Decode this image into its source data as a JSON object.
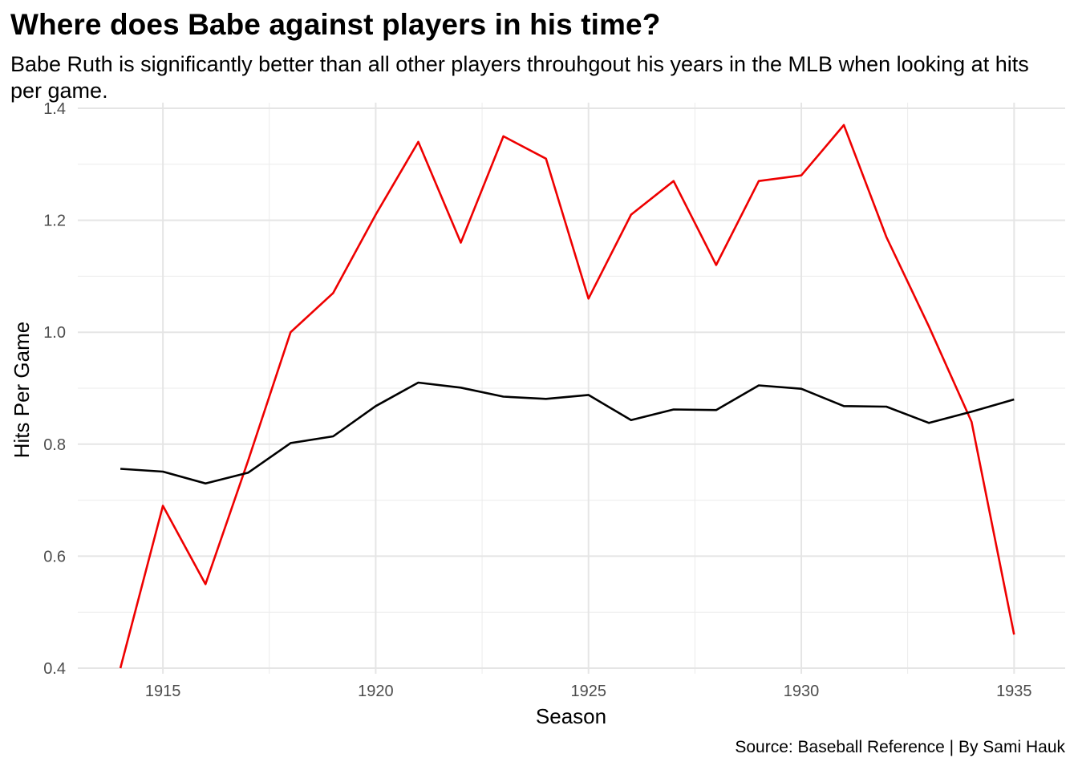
{
  "chart_data": {
    "type": "line",
    "title": "Where does Babe against players in his time?",
    "subtitle": "Babe Ruth is significantly better than all other players throuhgout his years in the MLB when looking at hits per game.",
    "caption": "Source: Baseball Reference | By Sami Hauk",
    "xlabel": "Season",
    "ylabel": "Hits Per Game",
    "xlim": [
      1913,
      1936.2
    ],
    "ylim": [
      0.39,
      1.41
    ],
    "x_ticks": [
      1915,
      1920,
      1925,
      1930,
      1935
    ],
    "y_ticks": [
      0.4,
      0.6,
      0.8,
      1.0,
      1.2,
      1.4
    ],
    "y_tick_labels": [
      "0.4",
      "0.6",
      "0.8",
      "1.0",
      "1.2",
      "1.4"
    ],
    "grid": true,
    "x": [
      1914,
      1915,
      1916,
      1917,
      1918,
      1919,
      1920,
      1921,
      1922,
      1923,
      1924,
      1925,
      1926,
      1927,
      1928,
      1929,
      1930,
      1931,
      1932,
      1933,
      1934,
      1935
    ],
    "series": [
      {
        "color": "#ee0000",
        "values": [
          0.4,
          0.69,
          0.55,
          0.77,
          1.0,
          1.07,
          1.21,
          1.34,
          1.16,
          1.35,
          1.31,
          1.06,
          1.21,
          1.27,
          1.12,
          1.27,
          1.28,
          1.37,
          1.17,
          1.01,
          0.84,
          0.46
        ]
      },
      {
        "color": "#000000",
        "values": [
          0.756,
          0.751,
          0.73,
          0.749,
          0.802,
          0.814,
          0.868,
          0.91,
          0.901,
          0.885,
          0.881,
          0.888,
          0.843,
          0.862,
          0.861,
          0.905,
          0.899,
          0.868,
          0.867,
          0.838,
          0.858,
          0.88
        ]
      }
    ]
  }
}
